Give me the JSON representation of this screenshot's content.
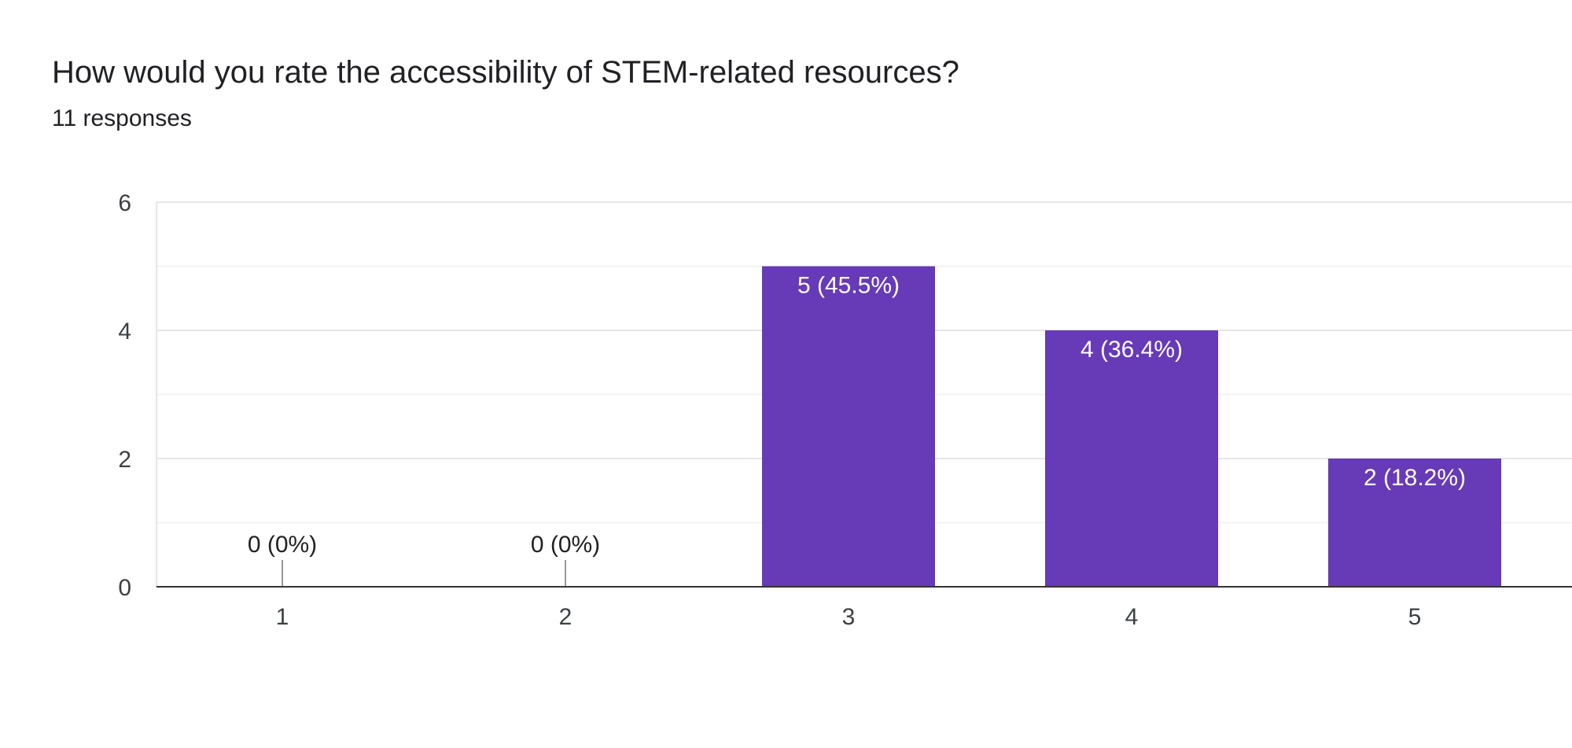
{
  "header": {
    "title": "How would you rate the accessibility of STEM-related resources?",
    "responses": "11 responses"
  },
  "chart_data": {
    "type": "bar",
    "categories": [
      "1",
      "2",
      "3",
      "4",
      "5"
    ],
    "values": [
      0,
      0,
      5,
      4,
      2
    ],
    "data_labels": [
      "0 (0%)",
      "0 (0%)",
      "5 (45.5%)",
      "4 (36.4%)",
      "2 (18.2%)"
    ],
    "ylim": [
      0,
      6
    ],
    "yticks": [
      0,
      2,
      4,
      6
    ],
    "grid": true,
    "legend": "none",
    "bar_color": "#673ab7"
  }
}
